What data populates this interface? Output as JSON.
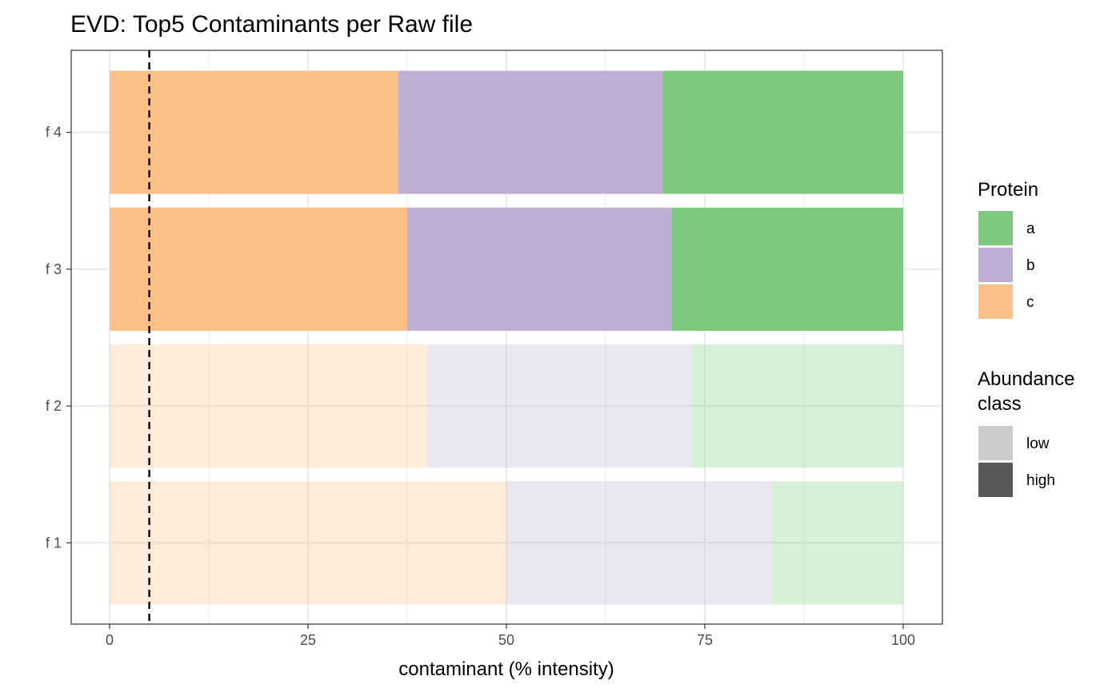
{
  "chart_data": {
    "type": "bar",
    "orientation": "horizontal",
    "stacked": true,
    "title": "EVD: Top5 Contaminants per Raw file",
    "xlabel": "contaminant (% intensity)",
    "ylabel": "",
    "xlim": [
      0,
      100
    ],
    "xticks": [
      "0",
      "25",
      "50",
      "75",
      "100"
    ],
    "xtick_values": [
      0,
      25,
      50,
      75,
      100
    ],
    "categories": [
      "f 1",
      "f 2",
      "f 3",
      "f 4"
    ],
    "threshold_line": 5,
    "series": [
      {
        "name": "c",
        "color": "#FDC086",
        "values": [
          50,
          40,
          37.5,
          36.4
        ]
      },
      {
        "name": "b",
        "color": "#BEAED4",
        "values": [
          33.4,
          33.3,
          33.3,
          33.3
        ]
      },
      {
        "name": "a",
        "color": "#7FC97F",
        "values": [
          16.6,
          26.7,
          29.2,
          30.3
        ]
      }
    ],
    "abundance_class": [
      "low",
      "low",
      "high",
      "high"
    ],
    "grid": true,
    "legend_placement": "right"
  },
  "legend": {
    "protein_title": "Protein",
    "protein_items": [
      {
        "label": "a",
        "color": "#7FC97F"
      },
      {
        "label": "b",
        "color": "#BEAED4"
      },
      {
        "label": "c",
        "color": "#FDC086"
      }
    ],
    "abundance_title_line1": "Abundance",
    "abundance_title_line2": "class",
    "abundance_items": [
      {
        "label": "low",
        "color": "#CCCCCC"
      },
      {
        "label": "high",
        "color": "#595959"
      }
    ]
  }
}
